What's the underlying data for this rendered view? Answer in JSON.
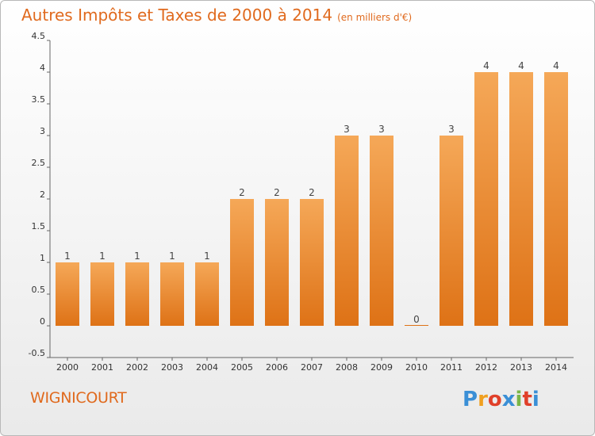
{
  "header": {
    "title": "Autres Impôts et Taxes de 2000 à 2014",
    "unit": "(en milliers d'€)"
  },
  "footer": {
    "commune": "WIGNICOURT",
    "logo_letters": [
      "P",
      "r",
      "o",
      "x",
      "i",
      "t",
      "i"
    ],
    "logo_colors": [
      "#3a8fd6",
      "#f0a020",
      "#e0402a",
      "#3a8fd6",
      "#7ab648",
      "#e0402a",
      "#3a8fd6"
    ]
  },
  "colors": {
    "bar_top": "#f5a858",
    "bar_bottom": "#de7216",
    "title": "#e06a1e"
  },
  "chart_data": {
    "type": "bar",
    "title": "Autres Impôts et Taxes de 2000 à 2014",
    "subtitle": "(en milliers d'€)",
    "xlabel": "",
    "ylabel": "",
    "categories": [
      "2000",
      "2001",
      "2002",
      "2003",
      "2004",
      "2005",
      "2006",
      "2007",
      "2008",
      "2009",
      "2010",
      "2011",
      "2012",
      "2013",
      "2014"
    ],
    "values": [
      1,
      1,
      1,
      1,
      1,
      2,
      2,
      2,
      3,
      3,
      0,
      3,
      4,
      4,
      4
    ],
    "data_labels": [
      "1",
      "1",
      "1",
      "1",
      "1",
      "2",
      "2",
      "2",
      "3",
      "3",
      "0",
      "3",
      "4",
      "4",
      "4"
    ],
    "ylim": [
      -0.5,
      4.5
    ],
    "yticks": [
      "-0.5",
      "0",
      "0.5",
      "1",
      "1.5",
      "2",
      "2.5",
      "3",
      "3.5",
      "4",
      "4.5"
    ],
    "grid": false
  }
}
